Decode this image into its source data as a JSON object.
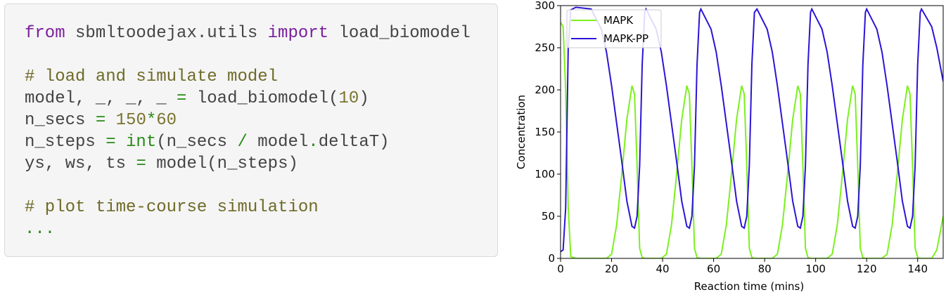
{
  "code": {
    "lines": [
      [
        {
          "text": "from",
          "kind": "keyword"
        },
        {
          "text": " sbmltoodejax.utils ",
          "kind": "plain"
        },
        {
          "text": "import",
          "kind": "keyword"
        },
        {
          "text": " load_biomodel",
          "kind": "plain"
        }
      ],
      [],
      [
        {
          "text": "# load and simulate model",
          "kind": "comment"
        }
      ],
      [
        {
          "text": "model, _, _, _ ",
          "kind": "plain"
        },
        {
          "text": "=",
          "kind": "operator"
        },
        {
          "text": " load_biomodel(",
          "kind": "plain"
        },
        {
          "text": "10",
          "kind": "number"
        },
        {
          "text": ")",
          "kind": "plain"
        }
      ],
      [
        {
          "text": "n_secs ",
          "kind": "plain"
        },
        {
          "text": "=",
          "kind": "operator"
        },
        {
          "text": " ",
          "kind": "plain"
        },
        {
          "text": "150",
          "kind": "number"
        },
        {
          "text": "*",
          "kind": "operator"
        },
        {
          "text": "60",
          "kind": "number"
        }
      ],
      [
        {
          "text": "n_steps ",
          "kind": "plain"
        },
        {
          "text": "=",
          "kind": "operator"
        },
        {
          "text": " ",
          "kind": "plain"
        },
        {
          "text": "int",
          "kind": "builtin"
        },
        {
          "text": "(n_secs ",
          "kind": "plain"
        },
        {
          "text": "/",
          "kind": "operator"
        },
        {
          "text": " model",
          "kind": "plain"
        },
        {
          "text": ".",
          "kind": "operator"
        },
        {
          "text": "deltaT)",
          "kind": "plain"
        }
      ],
      [
        {
          "text": "ys, ws, ts ",
          "kind": "plain"
        },
        {
          "text": "=",
          "kind": "operator"
        },
        {
          "text": " model(n_steps)",
          "kind": "plain"
        }
      ],
      [],
      [
        {
          "text": "# plot time-course simulation",
          "kind": "comment"
        }
      ],
      [
        {
          "text": "...",
          "kind": "operator"
        }
      ]
    ]
  },
  "chart_data": {
    "type": "line",
    "x_label": "Reaction time (mins)",
    "y_label": "Concentration",
    "x": [
      0,
      1,
      2,
      3,
      4,
      6,
      12,
      16,
      18,
      20,
      22,
      24,
      26,
      28,
      29,
      30,
      31,
      32,
      33,
      33.5,
      37.5,
      39.5,
      41.5,
      43.5,
      45.5,
      47.5,
      49.5,
      50.5,
      51.5,
      52.5,
      53.5,
      54.5,
      55,
      59,
      61,
      63,
      65,
      67,
      69,
      71,
      72,
      73,
      74,
      75,
      76,
      77,
      81,
      83,
      85,
      87,
      89,
      91,
      93,
      94,
      95,
      96,
      97,
      98,
      98.5,
      102.5,
      104.5,
      106.5,
      108.5,
      110.5,
      112.5,
      114.5,
      115.5,
      116.5,
      117.5,
      118.5,
      119.5,
      120,
      124,
      126,
      128,
      130,
      132,
      134,
      136,
      137,
      138,
      139,
      140,
      141,
      141.5,
      145.5,
      147.5,
      150
    ],
    "series": [
      {
        "name": "MAPK",
        "color": "#7cf01e",
        "values": [
          280,
          275,
          200,
          60,
          2,
          0,
          0,
          0,
          0,
          5,
          40,
          100,
          165,
          205,
          195,
          110,
          12,
          1,
          0,
          0,
          0,
          0,
          5,
          40,
          100,
          165,
          205,
          195,
          110,
          12,
          1,
          0,
          0,
          0,
          0,
          5,
          40,
          100,
          165,
          205,
          195,
          110,
          12,
          1,
          0,
          0,
          0,
          0,
          5,
          40,
          100,
          165,
          205,
          195,
          110,
          12,
          1,
          0,
          0,
          0,
          0,
          5,
          40,
          100,
          165,
          205,
          195,
          110,
          12,
          1,
          0,
          0,
          0,
          0,
          5,
          40,
          100,
          165,
          205,
          195,
          110,
          12,
          1,
          0,
          0,
          0,
          10,
          50
        ]
      },
      {
        "name": "MAPK-PP",
        "color": "#2b14d6",
        "values": [
          8,
          10,
          60,
          250,
          295,
          298,
          296,
          272,
          245,
          205,
          160,
          115,
          68,
          38,
          36,
          50,
          110,
          230,
          292,
          296,
          272,
          245,
          205,
          160,
          115,
          68,
          38,
          36,
          50,
          110,
          230,
          292,
          296,
          272,
          245,
          205,
          160,
          115,
          68,
          38,
          36,
          50,
          110,
          230,
          292,
          296,
          272,
          245,
          205,
          160,
          115,
          68,
          38,
          36,
          50,
          110,
          230,
          292,
          296,
          272,
          245,
          205,
          160,
          115,
          68,
          38,
          36,
          50,
          110,
          230,
          292,
          296,
          272,
          245,
          205,
          160,
          115,
          68,
          38,
          36,
          50,
          110,
          230,
          292,
          296,
          275,
          250,
          210
        ]
      }
    ],
    "xlim": [
      0,
      150
    ],
    "ylim": [
      0,
      300
    ],
    "xticks": [
      0,
      20,
      40,
      60,
      80,
      100,
      120,
      140
    ],
    "yticks": [
      0,
      50,
      100,
      150,
      200,
      250,
      300
    ],
    "legend": "upper-left"
  }
}
